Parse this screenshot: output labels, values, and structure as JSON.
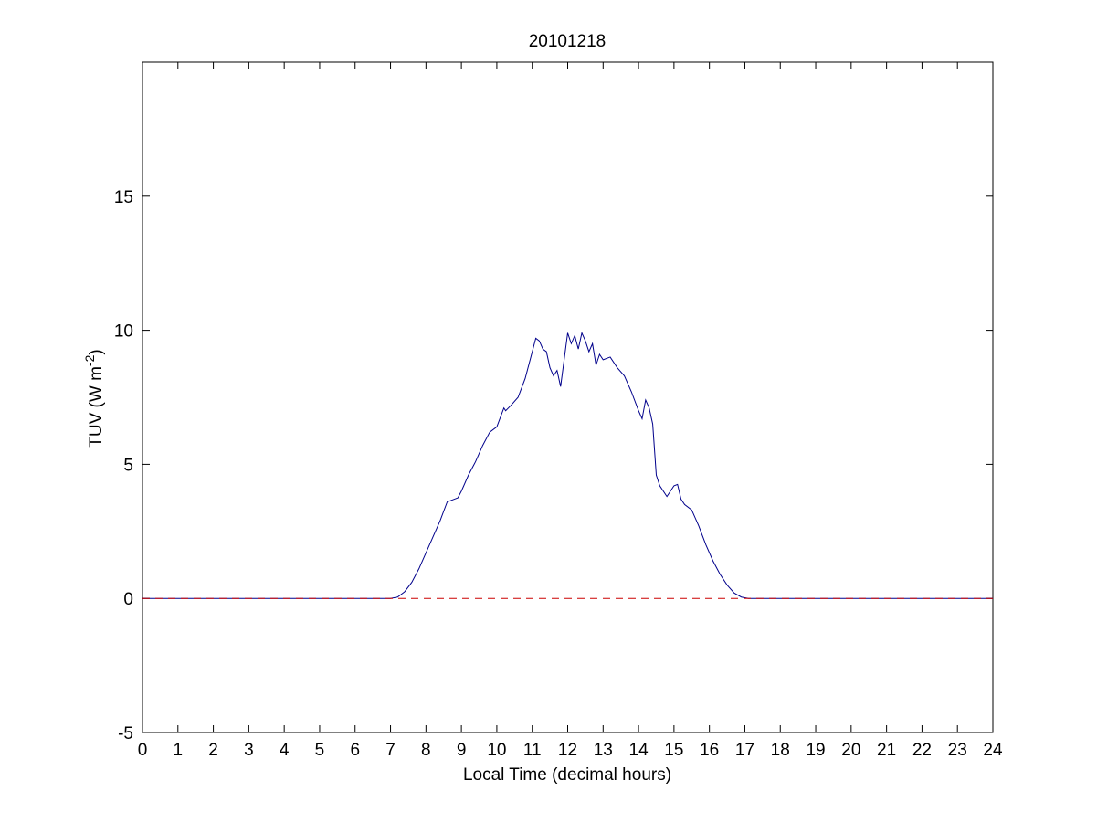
{
  "chart_data": {
    "type": "line",
    "title": "20101218",
    "xlabel": "Local Time (decimal hours)",
    "ylabel": "TUV (W m",
    "ylabel_superscript": "-2",
    "ylabel_suffix": ")",
    "xlim": [
      0,
      24
    ],
    "ylim": [
      -5,
      20
    ],
    "xticks": [
      0,
      1,
      2,
      3,
      4,
      5,
      6,
      7,
      8,
      9,
      10,
      11,
      12,
      13,
      14,
      15,
      16,
      17,
      18,
      19,
      20,
      21,
      22,
      23,
      24
    ],
    "yticks": [
      -5,
      0,
      5,
      10,
      15
    ],
    "grid": false,
    "legend": "none",
    "series": [
      {
        "color": "#00008B",
        "style": "solid",
        "x": [
          0,
          7.0,
          7.2,
          7.4,
          7.6,
          7.8,
          8.0,
          8.2,
          8.4,
          8.6,
          8.8,
          8.9,
          9.0,
          9.2,
          9.4,
          9.6,
          9.8,
          10.0,
          10.2,
          10.25,
          10.4,
          10.6,
          10.8,
          11.0,
          11.1,
          11.2,
          11.3,
          11.4,
          11.5,
          11.6,
          11.7,
          11.8,
          11.9,
          12.0,
          12.1,
          12.2,
          12.3,
          12.4,
          12.5,
          12.6,
          12.7,
          12.8,
          12.9,
          13.0,
          13.2,
          13.4,
          13.6,
          13.8,
          14.0,
          14.1,
          14.2,
          14.3,
          14.4,
          14.5,
          14.6,
          14.8,
          15.0,
          15.1,
          15.2,
          15.3,
          15.5,
          15.7,
          15.9,
          16.1,
          16.3,
          16.5,
          16.7,
          16.9,
          17.1,
          17.3,
          17.5,
          24
        ],
        "y": [
          0,
          0,
          0.05,
          0.25,
          0.6,
          1.1,
          1.7,
          2.3,
          2.9,
          3.6,
          3.7,
          3.75,
          4.0,
          4.6,
          5.1,
          5.7,
          6.2,
          6.4,
          7.1,
          7.0,
          7.2,
          7.5,
          8.2,
          9.2,
          9.7,
          9.6,
          9.3,
          9.2,
          8.6,
          8.3,
          8.5,
          7.9,
          8.9,
          9.9,
          9.5,
          9.8,
          9.3,
          9.9,
          9.6,
          9.2,
          9.5,
          8.7,
          9.1,
          8.9,
          9.0,
          8.6,
          8.3,
          7.7,
          7.0,
          6.7,
          7.4,
          7.1,
          6.5,
          4.6,
          4.2,
          3.8,
          4.2,
          4.25,
          3.7,
          3.5,
          3.3,
          2.7,
          2.0,
          1.4,
          0.9,
          0.5,
          0.2,
          0.05,
          0.0,
          0.0,
          0.0,
          0.0
        ]
      },
      {
        "color": "#CC0000",
        "style": "dashed",
        "x": [
          0,
          24
        ],
        "y": [
          0,
          0
        ]
      }
    ]
  }
}
